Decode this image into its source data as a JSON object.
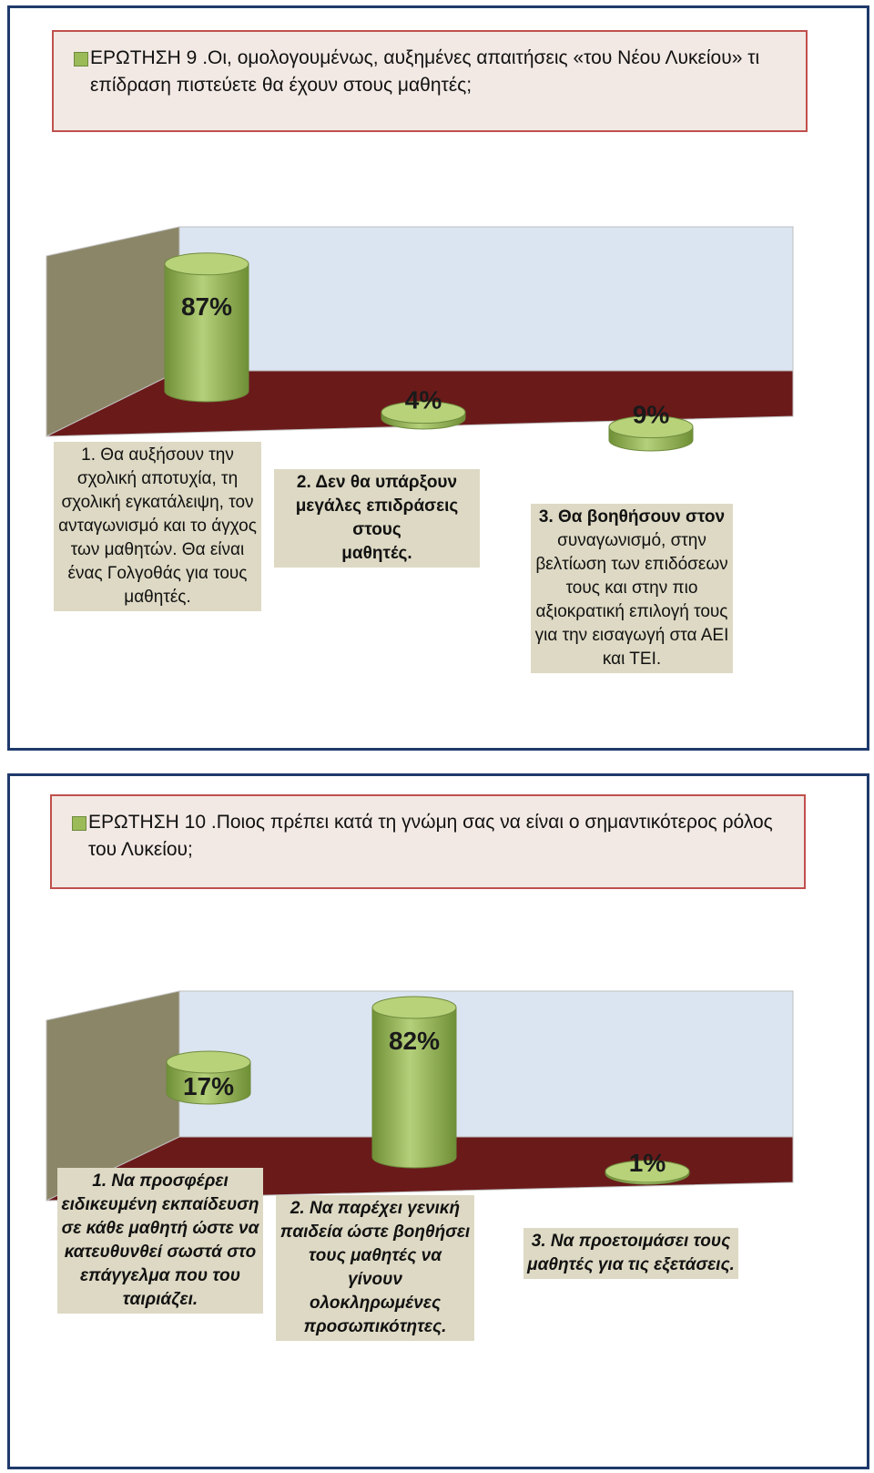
{
  "chart_data": [
    {
      "type": "bar",
      "title": "ΕΡΩΤΗΣΗ 9 .Οι, ομολογουμένως, αυξημένες απαιτήσεις «του Νέου Λυκείου» τι επίδραση πιστεύετε θα έχουν στους μαθητές;",
      "categories": [
        "1. Θα αυξήσουν την σχολική αποτυχία, τη σχολική εγκατάλειψη, τον ανταγωνισμό και το άγχος των μαθητών. Θα είναι ένας Γολγοθάς για τους μαθητές.",
        "2. Δεν θα υπάρξουν μεγάλες επιδράσεις στους μαθητές.",
        "3. Θα βοηθήσουν στον συναγωνισμό, στην βελτίωση των επιδόσεων τους και στην πιο αξιοκρατική επιλογή τους για την εισαγωγή στα ΑΕΙ και ΤΕΙ."
      ],
      "values": [
        87,
        4,
        9
      ],
      "data_labels": [
        "87%",
        "4%",
        "9%"
      ],
      "ylim": [
        0,
        100
      ],
      "legend": "top-left",
      "colors": {
        "bar": "#9bbb59",
        "floor": "#6b1a1a",
        "back_wall": "#dbe5f1",
        "side_wall": "#8b8667"
      }
    },
    {
      "type": "bar",
      "title": "ΕΡΩΤΗΣΗ 10 .Ποιος πρέπει κατά τη γνώμη σας να είναι ο σημαντικότερος ρόλος του Λυκείου;",
      "categories": [
        "1. Να προσφέρει ειδικευμένη εκπαίδευση σε κάθε μαθητή ώστε να κατευθυνθεί σωστά στο επάγγελμα που του ταιριάζει.",
        "2. Να παρέχει γενική παιδεία ώστε βοηθήσει τους μαθητές να γίνουν ολοκληρωμένες προσωπικότητες.",
        "3. Να προετοιμάσει τους μαθητές για τις εξετάσεις."
      ],
      "values": [
        17,
        82,
        1
      ],
      "data_labels": [
        "17%",
        "82%",
        "1%"
      ],
      "ylim": [
        0,
        100
      ],
      "legend": "top-left",
      "colors": {
        "bar": "#9bbb59",
        "floor": "#6b1a1a",
        "back_wall": "#dbe5f1",
        "side_wall": "#8b8667"
      }
    }
  ],
  "chart1_labels": {
    "cat1_lines": [
      "1. Θα αυξήσουν την",
      "σχολική αποτυχία, τη",
      "σχολική εγκατάλειψη, τον",
      "ανταγωνισμό και το άγχος",
      "των μαθητών. Θα είναι",
      "ένας Γολγοθάς για τους",
      "μαθητές."
    ],
    "cat2_lines": [
      "2. Δεν θα υπάρξουν",
      "μεγάλες επιδράσεις στους",
      "μαθητές."
    ],
    "cat3_lines": [
      "3. Θα βοηθήσουν στον",
      "συναγωνισμό, στην",
      "βελτίωση των επιδόσεων",
      "τους και στην πιο",
      "αξιοκρατική επιλογή τους",
      "για την εισαγωγή στα ΑΕΙ",
      "και ΤΕΙ."
    ]
  },
  "chart2_labels": {
    "cat1_lines": [
      "1. Να προσφέρει",
      "ειδικευμένη εκπαίδευση",
      "σε κάθε μαθητή ώστε να",
      "κατευθυνθεί σωστά στο",
      "επάγγελμα που του",
      "ταιριάζει."
    ],
    "cat2_lines": [
      "2. Να παρέχει γενική",
      "παιδεία ώστε βοηθήσει",
      "τους μαθητές να γίνουν",
      "ολοκληρωμένες",
      "προσωπικότητες."
    ],
    "cat3_lines": [
      "3. Να προετοιμάσει τους",
      "μαθητές για τις εξετάσεις."
    ]
  }
}
